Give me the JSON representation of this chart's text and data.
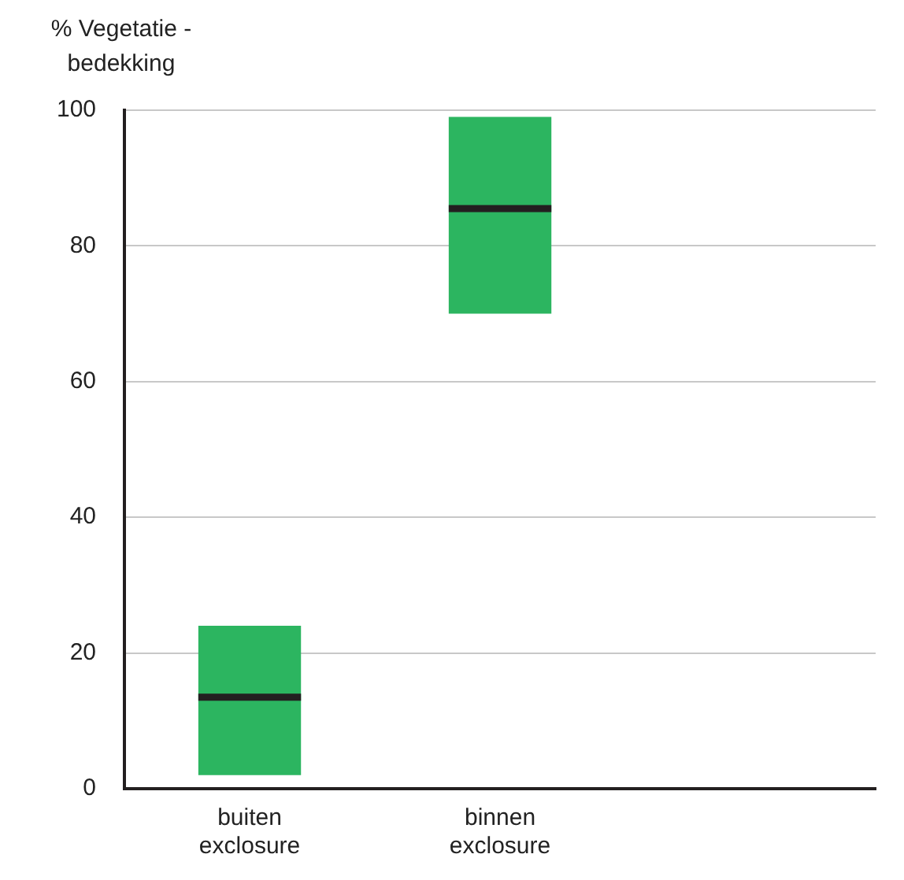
{
  "chart_data": {
    "type": "box",
    "ylabel": "% Vegetatie - bedekking",
    "categories": [
      "buiten exclosure",
      "binnen exclosure",
      null
    ],
    "series": [
      {
        "color": "#2cb560",
        "boxes": [
          {
            "low": 2,
            "q1": 2,
            "median": 13.5,
            "q3": 24,
            "high": 24
          },
          {
            "low": 70,
            "q1": 70,
            "median": 85.5,
            "q3": 99,
            "high": 99
          },
          null
        ]
      }
    ],
    "ylim": [
      0,
      100
    ],
    "yticks": [
      0,
      20,
      40,
      60,
      80,
      100
    ],
    "grid": "y",
    "legend": false
  }
}
